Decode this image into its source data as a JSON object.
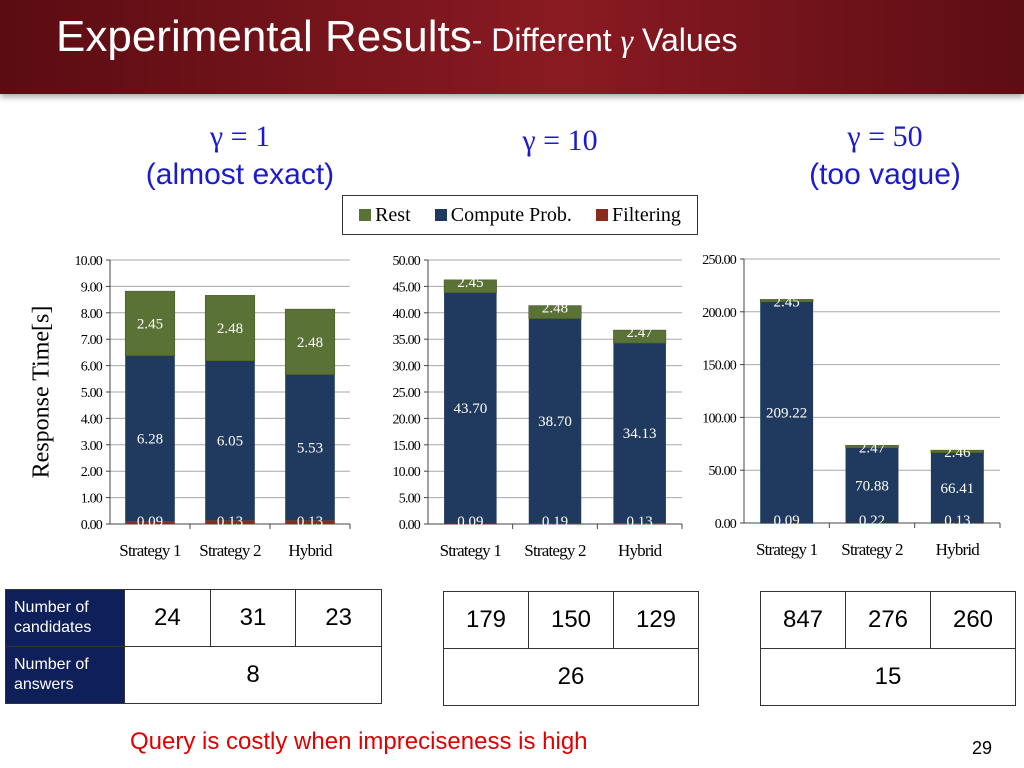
{
  "slide": {
    "title_main": "Experimental Results",
    "title_sub_prefix": "- Different ",
    "title_gamma": "γ",
    "title_sub_suffix": " Values",
    "page_number": "29",
    "note": "Query is costly when impreciseness is high"
  },
  "gamma_labels": [
    {
      "eq": "γ = 1",
      "desc": "(almost exact)"
    },
    {
      "eq": "γ = 10",
      "desc": ""
    },
    {
      "eq": "γ = 50",
      "desc": "(too vague)"
    }
  ],
  "y_axis_label": "Response Time[s]",
  "colors": {
    "rest": "#5b7236",
    "compute": "#1f3a5e",
    "filtering": "#8a2a1a"
  },
  "legend": [
    "Rest",
    "Compute Prob.",
    "Filtering"
  ],
  "chart_data": [
    {
      "type": "bar",
      "stacked": true,
      "categories": [
        "Strategy 1",
        "Strategy 2",
        "Hybrid"
      ],
      "ylim": [
        0,
        10
      ],
      "yticks": [
        "0.00",
        "1.00",
        "2.00",
        "3.00",
        "4.00",
        "5.00",
        "6.00",
        "7.00",
        "8.00",
        "9.00",
        "10.00"
      ],
      "series": [
        {
          "name": "Filtering",
          "values": [
            0.09,
            0.13,
            0.13
          ]
        },
        {
          "name": "Compute Prob.",
          "values": [
            6.28,
            6.05,
            5.53
          ]
        },
        {
          "name": "Rest",
          "values": [
            2.45,
            2.48,
            2.48
          ]
        }
      ],
      "labels": [
        [
          "0.09",
          "0.13",
          "0.13"
        ],
        [
          "6.28",
          "6.05",
          "5.53"
        ],
        [
          "2.45",
          "2.48",
          "2.48"
        ]
      ]
    },
    {
      "type": "bar",
      "stacked": true,
      "categories": [
        "Strategy 1",
        "Strategy 2",
        "Hybrid"
      ],
      "ylim": [
        0,
        50
      ],
      "yticks": [
        "0.00",
        "5.00",
        "10.00",
        "15.00",
        "20.00",
        "25.00",
        "30.00",
        "35.00",
        "40.00",
        "45.00",
        "50.00"
      ],
      "series": [
        {
          "name": "Filtering",
          "values": [
            0.09,
            0.19,
            0.13
          ]
        },
        {
          "name": "Compute Prob.",
          "values": [
            43.7,
            38.7,
            34.13
          ]
        },
        {
          "name": "Rest",
          "values": [
            2.45,
            2.48,
            2.47
          ]
        }
      ],
      "labels": [
        [
          "0.09",
          "0.19",
          "0.13"
        ],
        [
          "43.70",
          "38.70",
          "34.13"
        ],
        [
          "2.45",
          "2.48",
          "2.47"
        ]
      ]
    },
    {
      "type": "bar",
      "stacked": true,
      "categories": [
        "Strategy 1",
        "Strategy 2",
        "Hybrid"
      ],
      "ylim": [
        0,
        250
      ],
      "yticks": [
        "0.00",
        "50.00",
        "100.00",
        "150.00",
        "200.00",
        "250.00"
      ],
      "series": [
        {
          "name": "Filtering",
          "values": [
            0.09,
            0.22,
            0.13
          ]
        },
        {
          "name": "Compute Prob.",
          "values": [
            209.22,
            70.88,
            66.41
          ]
        },
        {
          "name": "Rest",
          "values": [
            2.45,
            2.47,
            2.46
          ]
        }
      ],
      "labels": [
        [
          "0.09",
          "0.22",
          "0.13"
        ],
        [
          "209.22",
          "70.88",
          "66.41"
        ],
        [
          "2.45",
          "2.47",
          "2.46"
        ]
      ]
    }
  ],
  "tables": {
    "row_headers": [
      "Number of candidates",
      "Number of answers"
    ],
    "t1": {
      "candidates": [
        "24",
        "31",
        "23"
      ],
      "answers": "8"
    },
    "t2": {
      "candidates": [
        "179",
        "150",
        "129"
      ],
      "answers": "26"
    },
    "t3": {
      "candidates": [
        "847",
        "276",
        "260"
      ],
      "answers": "15"
    }
  }
}
